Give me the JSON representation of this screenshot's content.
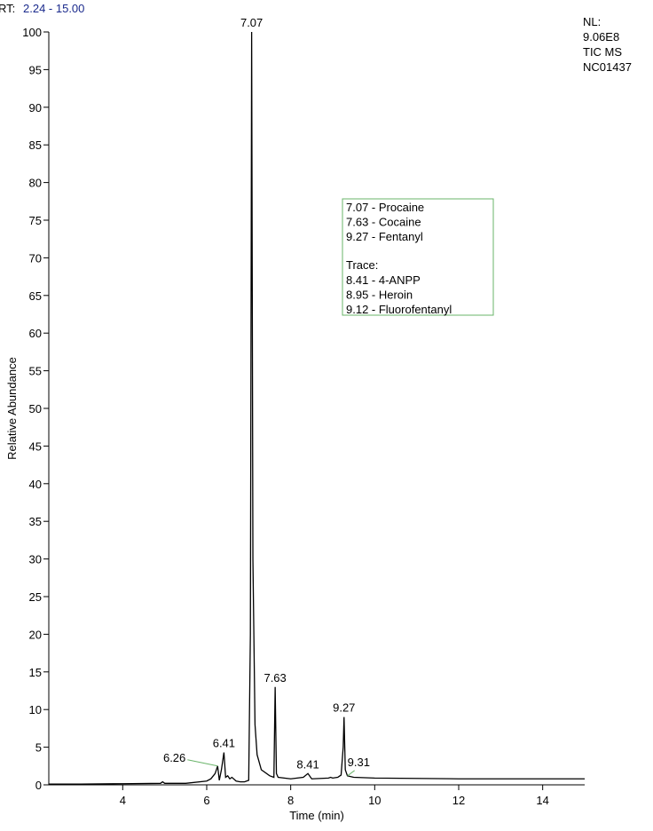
{
  "chart_data": {
    "type": "line",
    "rt_prefix": "RT:",
    "rt_range": "2.24 - 15.00",
    "info": [
      "NL:",
      "9.06E8",
      "TIC  MS",
      "NC01437"
    ],
    "xlabel": "Time (min)",
    "ylabel": "Relative Abundance",
    "xlim": [
      2.24,
      15.0
    ],
    "ylim": [
      0,
      100
    ],
    "xticks": [
      4,
      6,
      8,
      10,
      12,
      14
    ],
    "yticks": [
      0,
      5,
      10,
      15,
      20,
      25,
      30,
      35,
      40,
      45,
      50,
      55,
      60,
      65,
      70,
      75,
      80,
      85,
      90,
      95,
      100
    ],
    "legend": {
      "compounds": [
        "7.07 - Procaine",
        "7.63 - Cocaine",
        "9.27 - Fentanyl"
      ],
      "trace_title": "Trace:",
      "trace": [
        "8.41 - 4-ANPP",
        "8.95 - Heroin",
        "9.12 - Fluorofentanyl"
      ]
    },
    "series": [
      {
        "name": "TIC",
        "color": "#000000",
        "x": [
          2.24,
          3,
          4,
          4.9,
          4.95,
          5.0,
          5.5,
          6.0,
          6.1,
          6.2,
          6.26,
          6.3,
          6.35,
          6.41,
          6.45,
          6.5,
          6.55,
          6.6,
          6.7,
          6.8,
          6.9,
          7.0,
          7.04,
          7.07,
          7.1,
          7.15,
          7.2,
          7.3,
          7.5,
          7.6,
          7.63,
          7.66,
          7.7,
          8.0,
          8.3,
          8.41,
          8.5,
          8.9,
          8.95,
          9.0,
          9.12,
          9.2,
          9.25,
          9.27,
          9.3,
          9.35,
          9.5,
          10,
          12,
          15
        ],
        "values": [
          0.1,
          0.1,
          0.15,
          0.2,
          0.4,
          0.2,
          0.2,
          0.5,
          0.8,
          1.5,
          2.5,
          0.6,
          2.0,
          4.3,
          1.0,
          1.2,
          0.8,
          1.0,
          0.5,
          0.4,
          0.4,
          0.6,
          20,
          100,
          30,
          8,
          4,
          2,
          1.2,
          1.0,
          13,
          1.5,
          1.0,
          0.8,
          1.0,
          1.5,
          0.8,
          0.9,
          1.0,
          0.9,
          1.0,
          1.3,
          5,
          9,
          2,
          1.2,
          1.0,
          0.9,
          0.8,
          0.8
        ]
      }
    ],
    "peaks": [
      {
        "x": 7.07,
        "y": 100
      },
      {
        "x": 7.63,
        "y": 13
      },
      {
        "x": 9.27,
        "y": 9
      },
      {
        "x": 6.41,
        "y": 4.3
      },
      {
        "x": 8.41,
        "y": 1.5
      },
      {
        "x": 6.26,
        "y": 2.5
      },
      {
        "x": 9.31,
        "y": 1.2
      }
    ]
  }
}
